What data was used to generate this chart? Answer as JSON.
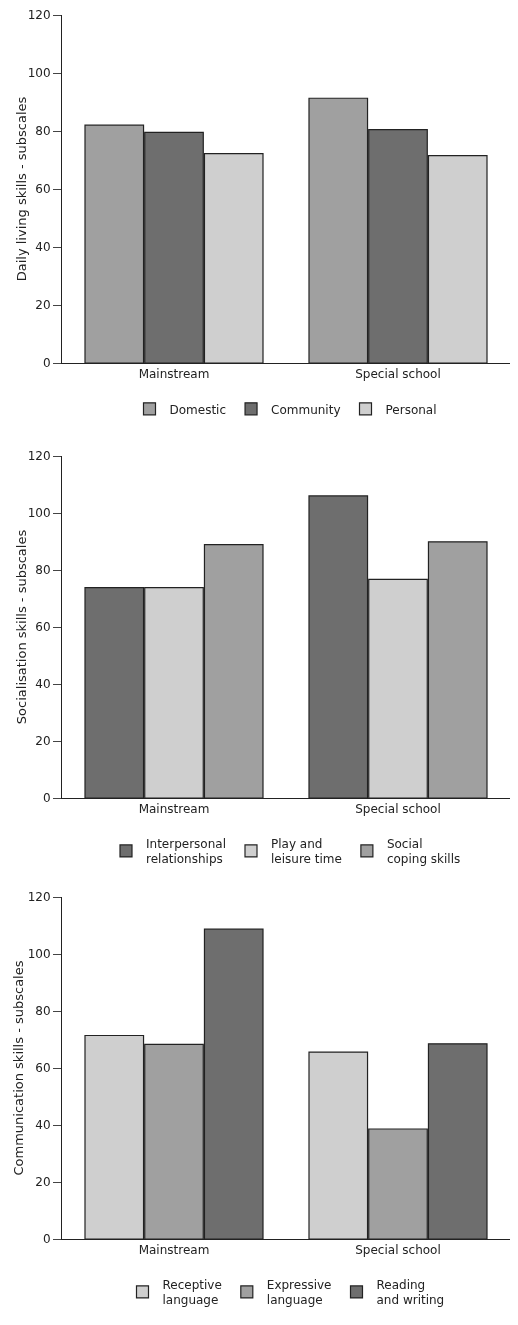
{
  "chart_data": [
    {
      "type": "bar",
      "ylabel": "Daily living skills - subscales",
      "categories": [
        "Mainstream",
        "Special school"
      ],
      "series": [
        {
          "name": "Domestic",
          "color": "#a0a0a0",
          "values": [
            82,
            91.3
          ]
        },
        {
          "name": "Community",
          "color": "#6e6e6e",
          "values": [
            79.5,
            80.5
          ]
        },
        {
          "name": "Personal",
          "color": "#cfcfcf",
          "values": [
            72.2,
            71.5
          ]
        }
      ],
      "ylim": [
        0,
        120
      ],
      "yticks": [
        0,
        20,
        40,
        60,
        80,
        100,
        120
      ],
      "grid": false,
      "legend": "bottom"
    },
    {
      "type": "bar",
      "ylabel": "Socialisation skills - subscales",
      "categories": [
        "Mainstream",
        "Special school"
      ],
      "series": [
        {
          "name": "Interpersonal relationships",
          "color": "#6e6e6e",
          "values": [
            73.8,
            106
          ]
        },
        {
          "name": "Play and leisure time",
          "color": "#cfcfcf",
          "values": [
            73.8,
            76.7
          ]
        },
        {
          "name": "Social coping skills",
          "color": "#a0a0a0",
          "values": [
            88.9,
            89.9
          ]
        }
      ],
      "ylim": [
        0,
        120
      ],
      "yticks": [
        0,
        20,
        40,
        60,
        80,
        100,
        120
      ],
      "grid": false,
      "legend": "bottom"
    },
    {
      "type": "bar",
      "ylabel": "Communication skills - subscales",
      "categories": [
        "Mainstream",
        "Special school"
      ],
      "series": [
        {
          "name": "Receptive language",
          "color": "#cfcfcf",
          "values": [
            71.4,
            65.6
          ]
        },
        {
          "name": "Expressive language",
          "color": "#a0a0a0",
          "values": [
            68.3,
            38.6
          ]
        },
        {
          "name": "Reading and writing",
          "color": "#6e6e6e",
          "values": [
            108.7,
            68.5
          ]
        }
      ],
      "ylim": [
        0,
        120
      ],
      "yticks": [
        0,
        20,
        40,
        60,
        80,
        100,
        120
      ],
      "grid": false,
      "legend": "bottom"
    }
  ]
}
